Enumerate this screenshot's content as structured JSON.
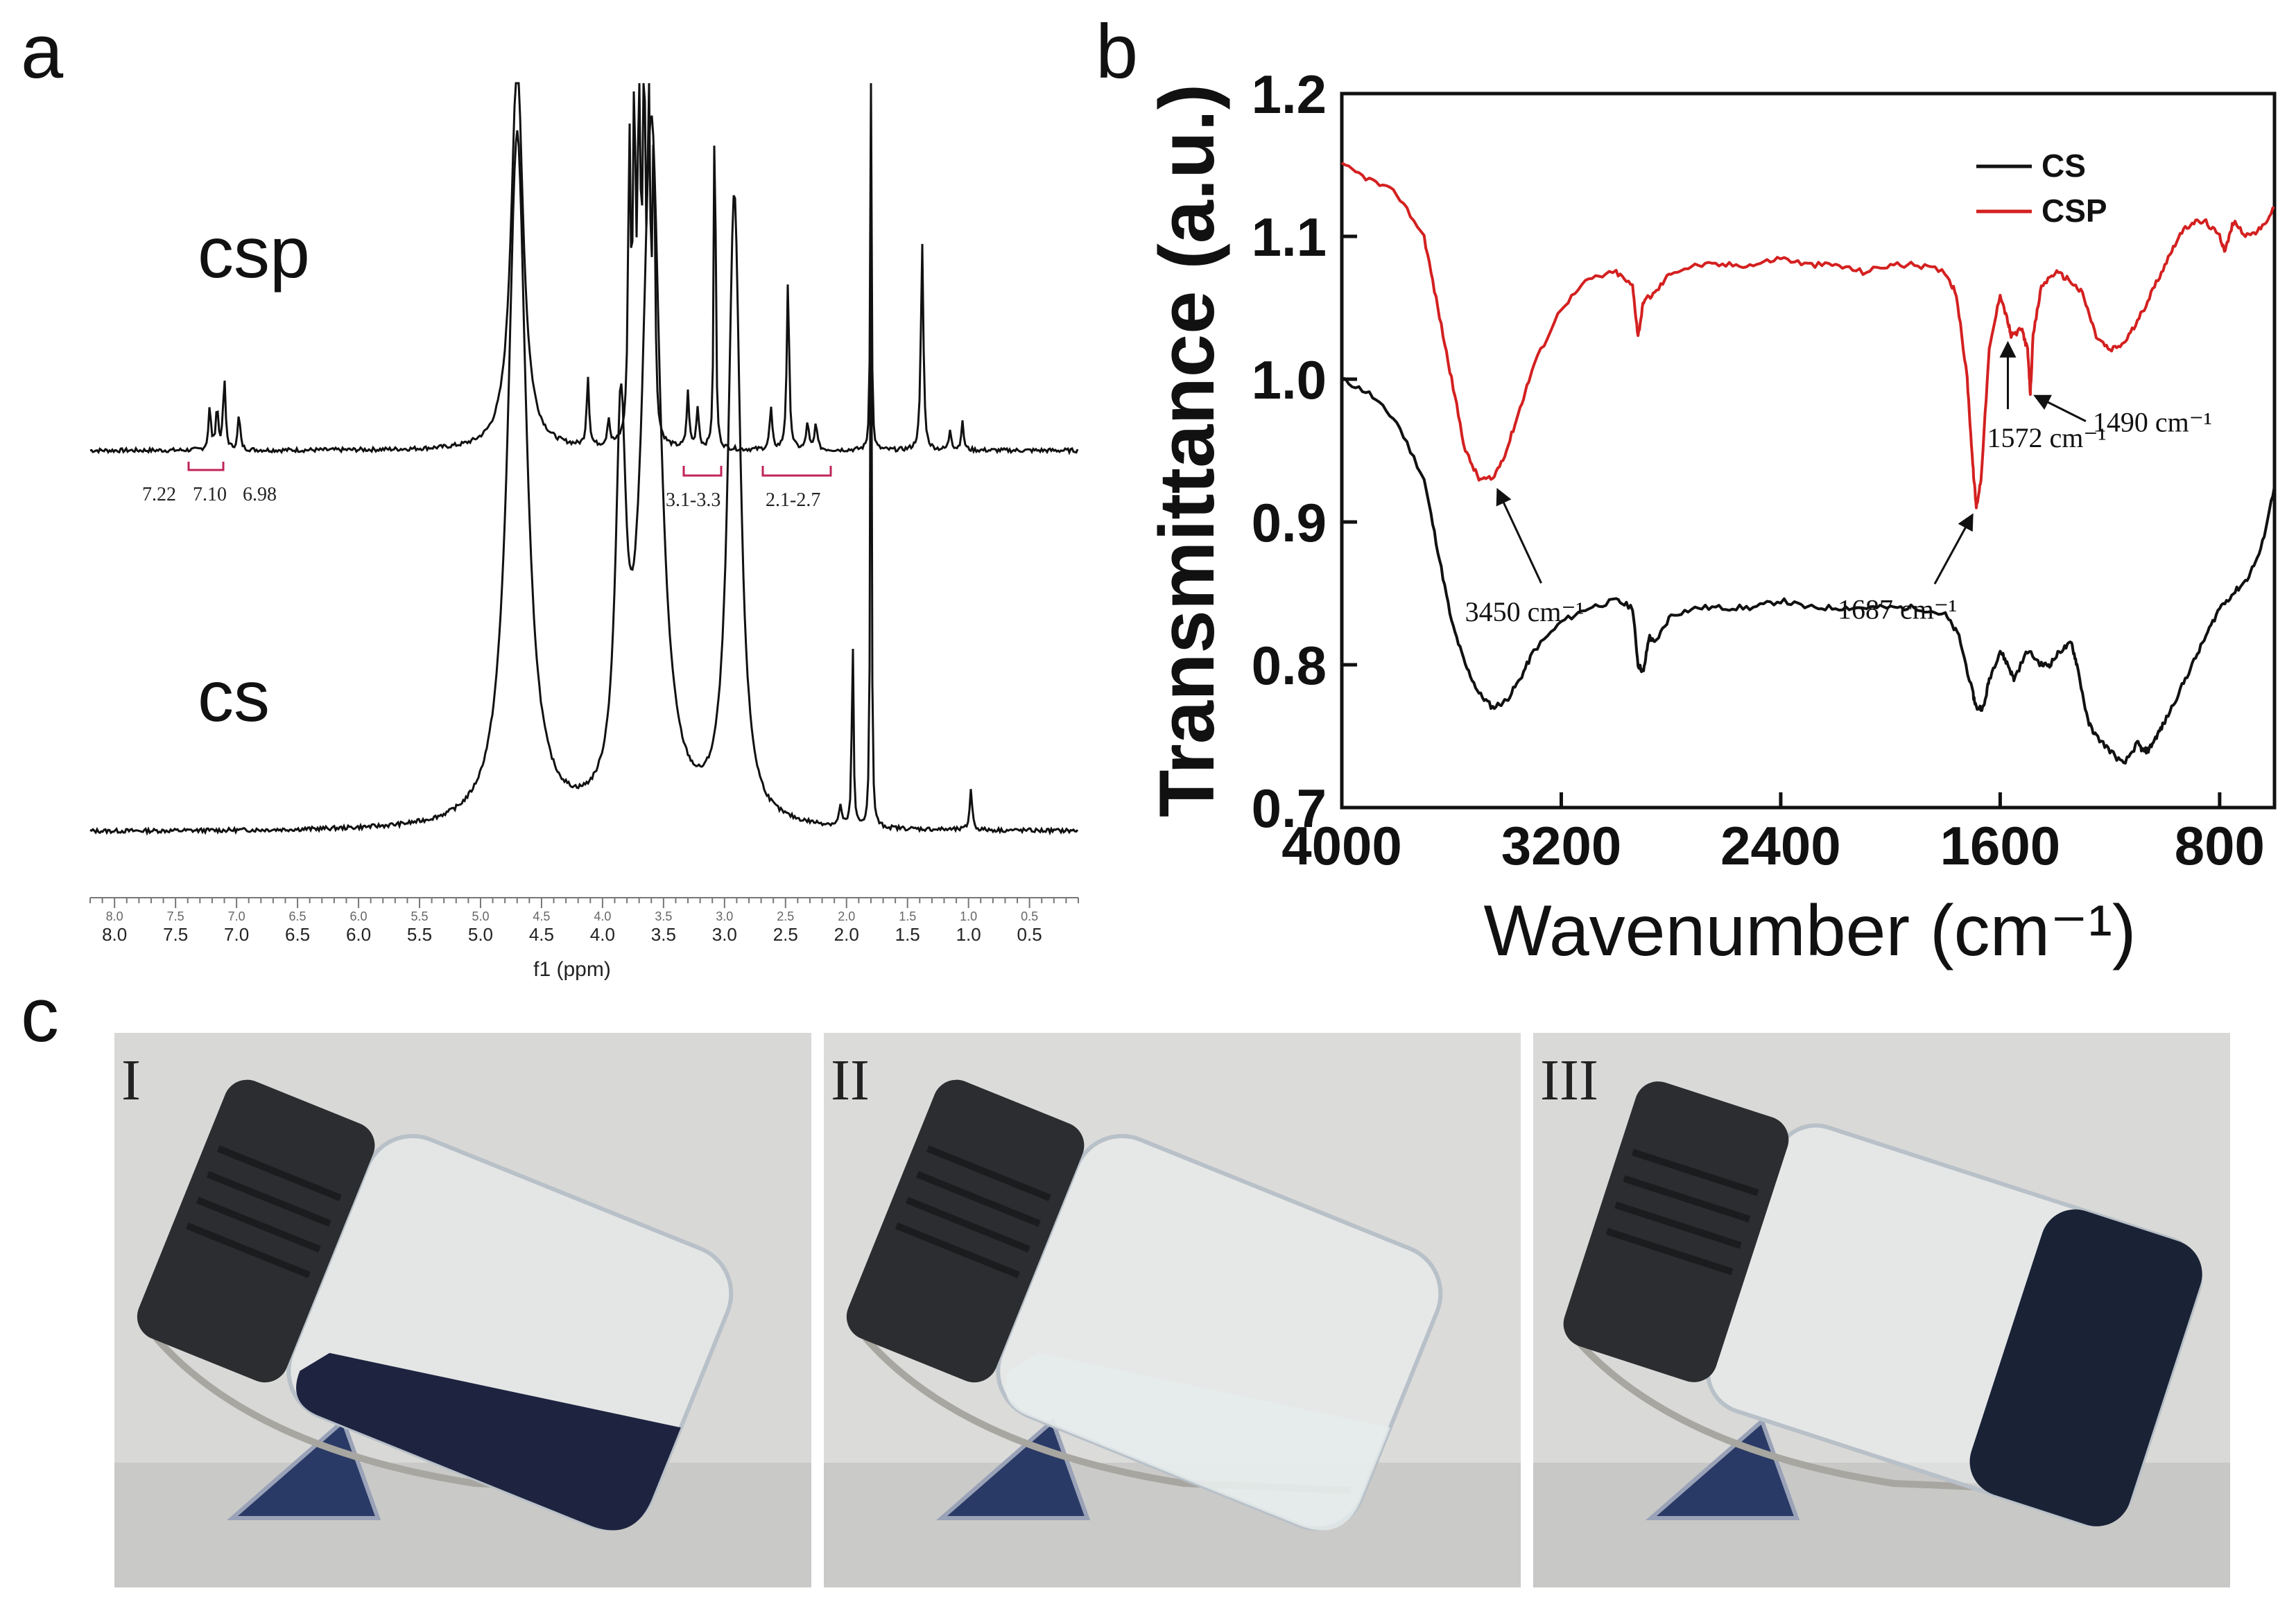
{
  "panels": {
    "a": "a",
    "b": "b",
    "c": "c"
  },
  "nmr": {
    "label_top": "csp",
    "label_bottom": "cs",
    "xlabel": "f1 (ppm)",
    "ticks": [
      "8.0",
      "7.5",
      "7.0",
      "6.5",
      "6.0",
      "5.5",
      "5.0",
      "4.5",
      "4.0",
      "3.5",
      "3.0",
      "2.5",
      "2.0",
      "1.5",
      "1.0",
      "0.5"
    ],
    "tick_values": [
      8.0,
      7.5,
      7.0,
      6.5,
      6.0,
      5.5,
      5.0,
      4.5,
      4.0,
      3.5,
      3.0,
      2.5,
      2.0,
      1.5,
      1.0,
      0.5
    ],
    "x_range": [
      8.2,
      0.1
    ],
    "annotations": {
      "aromatic": [
        "7.22",
        "7.10",
        "6.98"
      ],
      "range1": "3.1-3.3",
      "range2": "2.1-2.7"
    },
    "csp_peaks_ppm": [
      7.22,
      7.16,
      7.1,
      6.98,
      4.72,
      4.68,
      4.12,
      3.95,
      3.78,
      3.74,
      3.7,
      3.66,
      3.62,
      3.58,
      3.3,
      3.22,
      3.08,
      3.05,
      2.62,
      2.48,
      2.32,
      2.25,
      1.8,
      1.38,
      1.15,
      1.05
    ],
    "cs_peaks_ppm": [
      4.7,
      3.85,
      3.62,
      2.92,
      2.05,
      1.95,
      1.8,
      0.98
    ]
  },
  "chart_data": {
    "type": "line",
    "title": "",
    "xlabel": "Wavenumber (cm⁻¹)",
    "ylabel": "Transmittance (a.u.)",
    "xlim": [
      4000,
      600
    ],
    "ylim": [
      0.7,
      1.2
    ],
    "x_ticks": [
      4000,
      3200,
      2400,
      1600,
      800
    ],
    "x_tick_labels": [
      "4000",
      "3200",
      "2400",
      "1600",
      "800"
    ],
    "y_ticks": [
      0.7,
      0.8,
      0.9,
      1.0,
      1.1,
      1.2
    ],
    "y_tick_labels": [
      "0.7",
      "0.8",
      "0.9",
      "1.0",
      "1.1",
      "1.2"
    ],
    "legend_position": "top-right",
    "series": [
      {
        "name": "CS",
        "color": "#111111",
        "x": [
          4000,
          3900,
          3800,
          3700,
          3650,
          3600,
          3550,
          3500,
          3450,
          3400,
          3350,
          3300,
          3200,
          3100,
          3000,
          2940,
          2920,
          2900,
          2880,
          2860,
          2800,
          2700,
          2600,
          2500,
          2400,
          2300,
          2200,
          2100,
          2000,
          1900,
          1800,
          1750,
          1700,
          1687,
          1660,
          1640,
          1600,
          1572,
          1550,
          1500,
          1450,
          1420,
          1380,
          1340,
          1320,
          1280,
          1250,
          1200,
          1150,
          1100,
          1080,
          1060,
          1030,
          1000,
          950,
          900,
          850,
          800,
          750,
          700,
          650,
          600
        ],
        "y": [
          1.0,
          0.99,
          0.97,
          0.93,
          0.88,
          0.83,
          0.8,
          0.78,
          0.77,
          0.775,
          0.79,
          0.81,
          0.83,
          0.84,
          0.845,
          0.84,
          0.8,
          0.795,
          0.82,
          0.815,
          0.835,
          0.84,
          0.84,
          0.84,
          0.845,
          0.84,
          0.84,
          0.84,
          0.84,
          0.84,
          0.835,
          0.82,
          0.78,
          0.77,
          0.77,
          0.79,
          0.81,
          0.8,
          0.79,
          0.81,
          0.8,
          0.8,
          0.81,
          0.815,
          0.8,
          0.76,
          0.75,
          0.74,
          0.73,
          0.745,
          0.74,
          0.74,
          0.75,
          0.76,
          0.78,
          0.8,
          0.82,
          0.84,
          0.85,
          0.86,
          0.88,
          0.925
        ]
      },
      {
        "name": "CSP",
        "color": "#d42020",
        "x": [
          4000,
          3900,
          3800,
          3700,
          3650,
          3600,
          3550,
          3500,
          3450,
          3400,
          3350,
          3300,
          3200,
          3100,
          3000,
          2940,
          2920,
          2900,
          2860,
          2800,
          2700,
          2600,
          2500,
          2400,
          2300,
          2200,
          2100,
          2000,
          1900,
          1800,
          1760,
          1720,
          1700,
          1687,
          1670,
          1640,
          1600,
          1572,
          1560,
          1520,
          1500,
          1490,
          1480,
          1450,
          1400,
          1350,
          1300,
          1250,
          1200,
          1150,
          1100,
          1050,
          1000,
          950,
          900,
          850,
          800,
          780,
          750,
          700,
          650,
          600
        ],
        "y": [
          1.15,
          1.14,
          1.13,
          1.1,
          1.05,
          1.0,
          0.95,
          0.93,
          0.93,
          0.95,
          0.98,
          1.01,
          1.05,
          1.07,
          1.075,
          1.065,
          1.03,
          1.055,
          1.06,
          1.075,
          1.08,
          1.08,
          1.08,
          1.085,
          1.08,
          1.08,
          1.075,
          1.08,
          1.08,
          1.075,
          1.06,
          1.0,
          0.94,
          0.91,
          0.93,
          1.02,
          1.06,
          1.04,
          1.03,
          1.035,
          1.02,
          0.99,
          1.03,
          1.065,
          1.075,
          1.07,
          1.06,
          1.03,
          1.02,
          1.025,
          1.04,
          1.06,
          1.08,
          1.1,
          1.11,
          1.11,
          1.1,
          1.09,
          1.11,
          1.1,
          1.105,
          1.12
        ]
      }
    ],
    "annotations": [
      {
        "text": "3450 cm⁻¹",
        "x": 3450,
        "y": 0.93
      },
      {
        "text": "1687 cm⁻¹",
        "x": 1687,
        "y": 0.91
      },
      {
        "text": "1572 cm⁻¹",
        "x": 1572,
        "y": 1.03
      },
      {
        "text": "1490 cm⁻¹",
        "x": 1490,
        "y": 0.99
      }
    ]
  },
  "photos": [
    {
      "label": "I",
      "liquid": "#1e2440"
    },
    {
      "label": "II",
      "liquid": "#e6ecec"
    },
    {
      "label": "III",
      "liquid": "#1a2236"
    }
  ]
}
